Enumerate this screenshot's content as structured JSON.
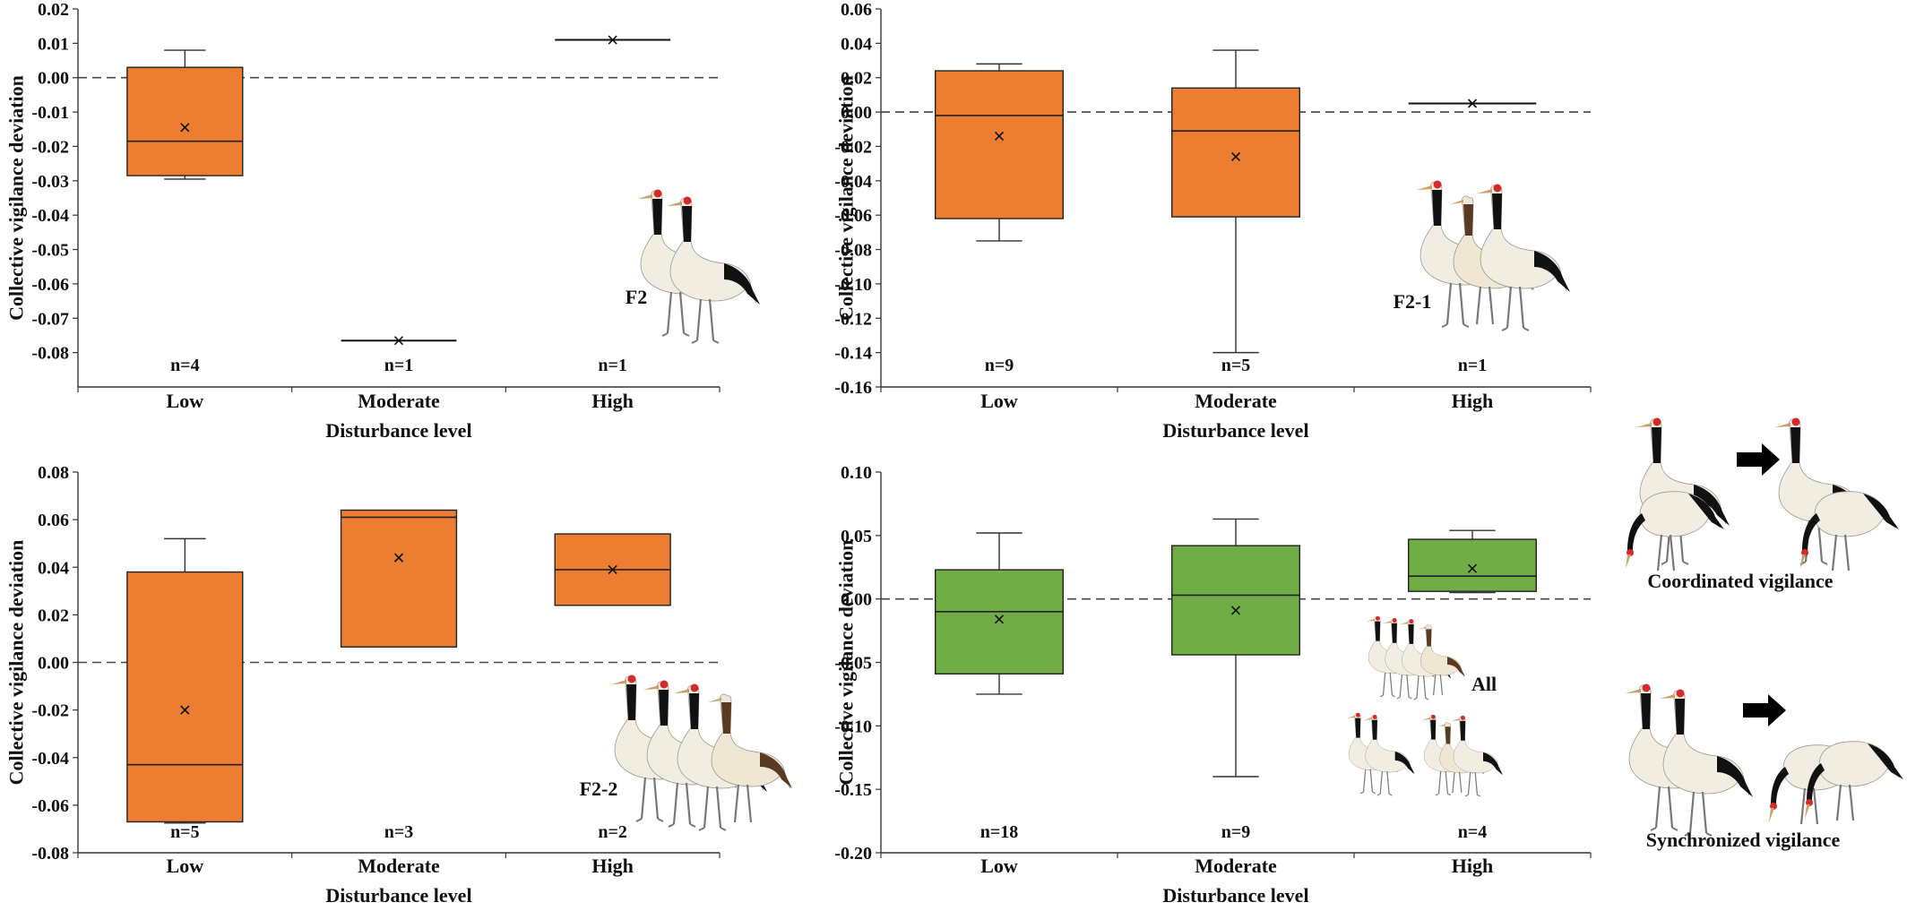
{
  "chart_data": [
    {
      "type": "box",
      "panel_label": "F2",
      "xlabel": "Disturbance level",
      "ylabel": "Collective vigilance deviation",
      "categories": [
        "Low",
        "Moderate",
        "High"
      ],
      "ylim": [
        -0.09,
        0.02
      ],
      "yticks": [
        -0.08,
        -0.07,
        -0.06,
        -0.05,
        -0.04,
        -0.03,
        -0.02,
        -0.01,
        0.0,
        0.01,
        0.02
      ],
      "ytick_labels": [
        "-0.08",
        "-0.07",
        "-0.06",
        "-0.05",
        "-0.04",
        "-0.03",
        "-0.02",
        "-0.01",
        "0.00",
        "0.01",
        "0.02"
      ],
      "zero_line": 0,
      "box_color": "#ED7D31",
      "boxes": [
        {
          "category": "Low",
          "min": -0.0295,
          "q1": -0.0285,
          "median": -0.0185,
          "q3": 0.003,
          "max": 0.008,
          "mean": -0.0145,
          "n_label": "n=4"
        },
        {
          "category": "Moderate",
          "min": -0.0765,
          "q1": -0.0765,
          "median": -0.0765,
          "q3": -0.0765,
          "max": -0.0765,
          "mean": -0.0765,
          "n_label": "n=1"
        },
        {
          "category": "High",
          "min": 0.011,
          "q1": 0.011,
          "median": 0.011,
          "q3": 0.011,
          "max": 0.011,
          "mean": 0.011,
          "n_label": "n=1"
        }
      ]
    },
    {
      "type": "box",
      "panel_label": "F2-1",
      "xlabel": "Disturbance level",
      "ylabel": "Collective vigilance deviation",
      "categories": [
        "Low",
        "Moderate",
        "High"
      ],
      "ylim": [
        -0.16,
        0.06
      ],
      "yticks": [
        -0.16,
        -0.14,
        -0.12,
        -0.1,
        -0.08,
        -0.06,
        -0.04,
        -0.02,
        0.0,
        0.02,
        0.04,
        0.06
      ],
      "ytick_labels": [
        "-0.16",
        "-0.14",
        "-0.12",
        "-0.10",
        "-0.08",
        "-0.06",
        "-0.04",
        "-0.02",
        "0.00",
        "0.02",
        "0.04",
        "0.06"
      ],
      "zero_line": 0,
      "box_color": "#ED7D31",
      "boxes": [
        {
          "category": "Low",
          "min": -0.075,
          "q1": -0.062,
          "median": -0.002,
          "q3": 0.024,
          "max": 0.028,
          "mean": -0.014,
          "n_label": "n=9"
        },
        {
          "category": "Moderate",
          "min": -0.14,
          "q1": -0.061,
          "median": -0.011,
          "q3": 0.014,
          "max": 0.036,
          "mean": -0.026,
          "n_label": "n=5"
        },
        {
          "category": "High",
          "min": 0.005,
          "q1": 0.005,
          "median": 0.005,
          "q3": 0.005,
          "max": 0.005,
          "mean": 0.005,
          "n_label": "n=1"
        }
      ]
    },
    {
      "type": "box",
      "panel_label": "F2-2",
      "xlabel": "Disturbance level",
      "ylabel": "Collective vigilance deviation",
      "categories": [
        "Low",
        "Moderate",
        "High"
      ],
      "ylim": [
        -0.08,
        0.08
      ],
      "yticks": [
        -0.08,
        -0.06,
        -0.04,
        -0.02,
        0.0,
        0.02,
        0.04,
        0.06,
        0.08
      ],
      "ytick_labels": [
        "-0.08",
        "-0.06",
        "-0.04",
        "-0.02",
        "0.00",
        "0.02",
        "0.04",
        "0.06",
        "0.08"
      ],
      "zero_line": 0,
      "box_color": "#ED7D31",
      "boxes": [
        {
          "category": "Low",
          "min": -0.0675,
          "q1": -0.067,
          "median": -0.043,
          "q3": 0.038,
          "max": 0.052,
          "mean": -0.02,
          "n_label": "n=5"
        },
        {
          "category": "Moderate",
          "min": 0.0065,
          "q1": 0.0065,
          "median": 0.061,
          "q3": 0.064,
          "max": 0.064,
          "mean": 0.044,
          "n_label": "n=3"
        },
        {
          "category": "High",
          "min": 0.024,
          "q1": 0.024,
          "median": 0.039,
          "q3": 0.054,
          "max": 0.054,
          "mean": 0.039,
          "n_label": "n=2"
        }
      ]
    },
    {
      "type": "box",
      "panel_label": "All",
      "xlabel": "Disturbance level",
      "ylabel": "Collective vigilance deviation",
      "categories": [
        "Low",
        "Moderate",
        "High"
      ],
      "ylim": [
        -0.2,
        0.1
      ],
      "yticks": [
        -0.2,
        -0.15,
        -0.1,
        -0.05,
        0.0,
        0.05,
        0.1
      ],
      "ytick_labels": [
        "-0.20",
        "-0.15",
        "-0.10",
        "-0.05",
        "0.00",
        "0.05",
        "0.10"
      ],
      "zero_line": 0,
      "box_color": "#70AD47",
      "boxes": [
        {
          "category": "Low",
          "min": -0.075,
          "q1": -0.059,
          "median": -0.01,
          "q3": 0.023,
          "max": 0.052,
          "mean": -0.016,
          "n_label": "n=18"
        },
        {
          "category": "Moderate",
          "min": -0.14,
          "q1": -0.044,
          "median": 0.003,
          "q3": 0.042,
          "max": 0.063,
          "mean": -0.009,
          "n_label": "n=9"
        },
        {
          "category": "High",
          "min": 0.005,
          "q1": 0.006,
          "median": 0.018,
          "q3": 0.047,
          "max": 0.054,
          "mean": 0.024,
          "n_label": "n=4"
        }
      ]
    }
  ],
  "legend": {
    "coordinated_label": "Coordinated vigilance",
    "synchronized_label": "Synchronized vigilance"
  },
  "illustration": {
    "crane_body_color": "#F2EDE1",
    "crane_neck_color": "#111111",
    "crane_crown_color": "#D52A2A",
    "juvenile_neck_color": "#5A3A22"
  }
}
